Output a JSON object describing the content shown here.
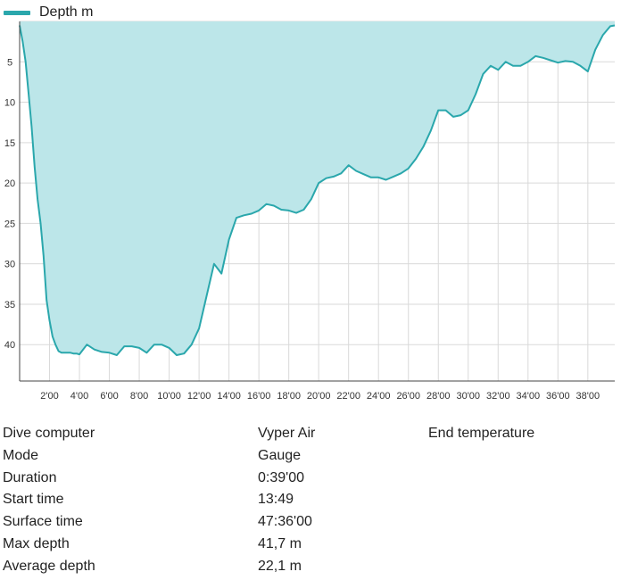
{
  "chart_data": {
    "type": "area",
    "series": [
      {
        "name": "Depth m",
        "color": "#2aa7ac",
        "fill": "#bce6e9",
        "x": [
          0.0,
          0.2,
          0.4,
          0.6,
          0.8,
          1.0,
          1.2,
          1.4,
          1.6,
          1.8,
          2.0,
          2.2,
          2.4,
          2.6,
          2.8,
          3.0,
          3.2,
          3.4,
          3.6,
          3.8,
          4.0,
          4.5,
          5.0,
          5.5,
          6.0,
          6.5,
          7.0,
          7.5,
          8.0,
          8.5,
          9.0,
          9.5,
          10.0,
          10.5,
          11.0,
          11.5,
          12.0,
          12.5,
          13.0,
          13.5,
          14.0,
          14.5,
          15.0,
          15.5,
          16.0,
          16.5,
          17.0,
          17.5,
          18.0,
          18.5,
          19.0,
          19.5,
          20.0,
          20.5,
          21.0,
          21.5,
          22.0,
          22.5,
          23.0,
          23.5,
          24.0,
          24.5,
          25.0,
          25.5,
          26.0,
          26.5,
          27.0,
          27.5,
          28.0,
          28.5,
          29.0,
          29.5,
          30.0,
          30.5,
          31.0,
          31.5,
          32.0,
          32.5,
          33.0,
          33.5,
          34.0,
          34.5,
          35.0,
          35.5,
          36.0,
          36.5,
          37.0,
          37.5,
          38.0,
          38.5,
          39.0,
          39.5,
          39.8
        ],
        "y": [
          0.5,
          2.5,
          5.0,
          9.0,
          13.0,
          18.0,
          22.0,
          25.0,
          29.0,
          34.5,
          37.0,
          39.0,
          40.0,
          40.8,
          41.0,
          41.0,
          41.0,
          41.0,
          41.1,
          41.1,
          41.2,
          40.0,
          40.6,
          40.9,
          41.0,
          41.3,
          40.2,
          40.2,
          40.4,
          41.0,
          40.0,
          40.0,
          40.4,
          41.3,
          41.1,
          40.0,
          38.0,
          34.0,
          30.0,
          31.2,
          27.0,
          24.3,
          24.0,
          23.8,
          23.4,
          22.6,
          22.8,
          23.3,
          23.4,
          23.7,
          23.3,
          22.0,
          20.0,
          19.4,
          19.2,
          18.8,
          17.8,
          18.5,
          18.9,
          19.3,
          19.3,
          19.6,
          19.2,
          18.8,
          18.2,
          17.0,
          15.5,
          13.5,
          11.0,
          11.0,
          11.8,
          11.6,
          11.0,
          9.0,
          6.5,
          5.5,
          6.0,
          5.0,
          5.5,
          5.5,
          5.0,
          4.3,
          4.5,
          4.8,
          5.1,
          4.9,
          5.0,
          5.5,
          6.2,
          3.5,
          1.7,
          0.6,
          0.5
        ]
      }
    ],
    "xlabel": "",
    "ylabel": "",
    "xlim": [
      0,
      39.8
    ],
    "ylim": [
      0,
      44.5
    ],
    "y_inverted": true,
    "x_ticks": [
      "2'00",
      "4'00",
      "6'00",
      "8'00",
      "10'00",
      "12'00",
      "14'00",
      "16'00",
      "18'00",
      "20'00",
      "22'00",
      "24'00",
      "26'00",
      "28'00",
      "30'00",
      "32'00",
      "34'00",
      "36'00",
      "38'00"
    ],
    "x_tick_values": [
      2,
      4,
      6,
      8,
      10,
      12,
      14,
      16,
      18,
      20,
      22,
      24,
      26,
      28,
      30,
      32,
      34,
      36,
      38
    ],
    "y_ticks": [
      "5",
      "10",
      "15",
      "20",
      "25",
      "30",
      "35",
      "40"
    ],
    "y_tick_values": [
      5,
      10,
      15,
      20,
      25,
      30,
      35,
      40
    ],
    "grid": true,
    "legend": "top-left"
  },
  "info": {
    "rows": [
      {
        "label": "Dive computer",
        "value": "Vyper Air",
        "extra": "End temperature"
      },
      {
        "label": "Mode",
        "value": "Gauge",
        "extra": ""
      },
      {
        "label": "Duration",
        "value": "0:39'00",
        "extra": ""
      },
      {
        "label": "Start time",
        "value": "13:49",
        "extra": ""
      },
      {
        "label": "Surface time",
        "value": "47:36'00",
        "extra": ""
      },
      {
        "label": "Max depth",
        "value": "41,7 m",
        "extra": ""
      },
      {
        "label": "Average depth",
        "value": "22,1 m",
        "extra": ""
      }
    ]
  }
}
